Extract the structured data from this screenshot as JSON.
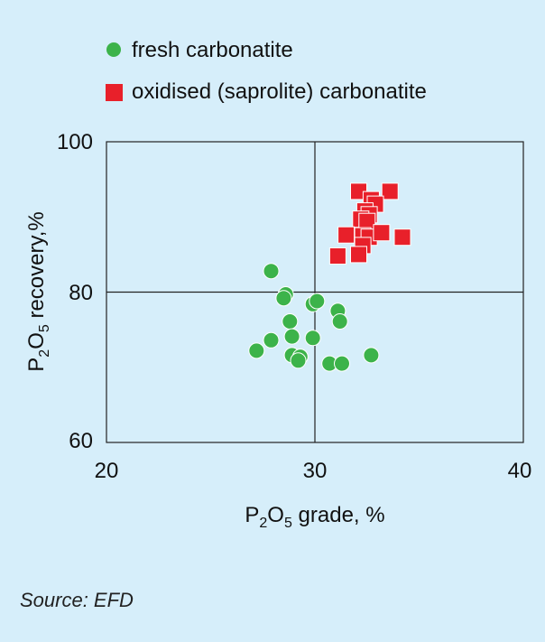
{
  "chart_data": {
    "type": "scatter",
    "title": "",
    "xlabel": {
      "main": "P",
      "sub1": "2",
      "mid": "O",
      "sub2": "5",
      "rest": " grade, %"
    },
    "ylabel": {
      "main": "P",
      "sub1": "2",
      "mid": "O",
      "sub2": "5",
      "rest": " recovery,%"
    },
    "xlim": [
      20,
      40
    ],
    "ylim": [
      60,
      100
    ],
    "xticks": [
      "20",
      "30",
      "40"
    ],
    "yticks": [
      "100",
      "80",
      "60"
    ],
    "grid": true,
    "legend_position": "top-left",
    "series": [
      {
        "name": "fresh carbonatite",
        "marker": "circle",
        "color": "#3cb34a",
        "points": [
          [
            27.9,
            82.8
          ],
          [
            28.6,
            79.7
          ],
          [
            28.5,
            79.2
          ],
          [
            29.9,
            78.4
          ],
          [
            30.1,
            78.8
          ],
          [
            31.1,
            77.5
          ],
          [
            31.2,
            76.1
          ],
          [
            28.8,
            76.1
          ],
          [
            28.9,
            74.1
          ],
          [
            27.9,
            73.6
          ],
          [
            29.9,
            73.9
          ],
          [
            27.2,
            72.2
          ],
          [
            28.9,
            71.6
          ],
          [
            29.3,
            71.4
          ],
          [
            29.2,
            70.9
          ],
          [
            30.7,
            70.5
          ],
          [
            31.3,
            70.5
          ],
          [
            32.7,
            71.6
          ]
        ]
      },
      {
        "name": "oxidised (saprolite) carbonatite",
        "marker": "square",
        "color": "#e8202a",
        "points": [
          [
            32.1,
            93.4
          ],
          [
            33.6,
            93.4
          ],
          [
            32.7,
            92.3
          ],
          [
            32.9,
            91.7
          ],
          [
            32.4,
            90.8
          ],
          [
            32.6,
            90.3
          ],
          [
            32.2,
            89.7
          ],
          [
            32.5,
            89.4
          ],
          [
            31.5,
            87.6
          ],
          [
            32.3,
            87.5
          ],
          [
            32.6,
            87.3
          ],
          [
            33.2,
            87.9
          ],
          [
            34.2,
            87.3
          ],
          [
            32.3,
            86.2
          ],
          [
            32.1,
            85.0
          ],
          [
            31.1,
            84.8
          ]
        ]
      }
    ],
    "source": "Source: EFD"
  }
}
